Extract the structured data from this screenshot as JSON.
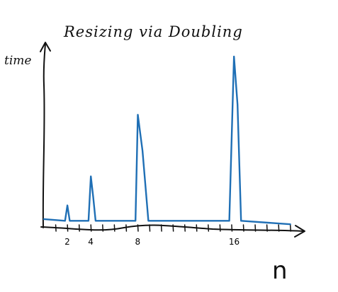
{
  "chart_data": {
    "type": "line",
    "title": "Resizing via Doubling",
    "xlabel": "n",
    "ylabel": "time",
    "x_tick_labels": [
      {
        "n": 2,
        "label": "2"
      },
      {
        "n": 4,
        "label": "4"
      },
      {
        "n": 8,
        "label": "8"
      },
      {
        "n": 16,
        "label": "16"
      }
    ],
    "x_minor_ticks": [
      1,
      2,
      3,
      4,
      5,
      6,
      7,
      8,
      9,
      10,
      11,
      12,
      13,
      14,
      15,
      16,
      17,
      18,
      19,
      20,
      21
    ],
    "xlim": [
      0,
      21.5
    ],
    "ylim": [
      0,
      1
    ],
    "grid": false,
    "legend": "none",
    "series_color": "#1f6fb5",
    "series": [
      {
        "points": [
          [
            0.0,
            0.05
          ],
          [
            1.8,
            0.04
          ],
          [
            2.0,
            0.13
          ],
          [
            2.2,
            0.04
          ],
          [
            3.8,
            0.04
          ],
          [
            4.0,
            0.3
          ],
          [
            4.2,
            0.18
          ],
          [
            4.4,
            0.04
          ],
          [
            7.8,
            0.04
          ],
          [
            8.0,
            0.66
          ],
          [
            8.4,
            0.45
          ],
          [
            8.9,
            0.04
          ],
          [
            15.8,
            0.04
          ],
          [
            16.2,
            1.0
          ],
          [
            16.5,
            0.72
          ],
          [
            16.8,
            0.04
          ],
          [
            21.0,
            0.02
          ]
        ]
      }
    ]
  }
}
